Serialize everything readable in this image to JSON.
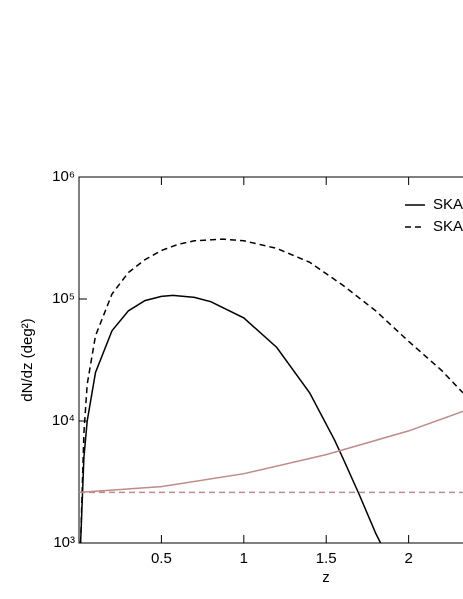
{
  "chart_data": {
    "type": "line",
    "xlabel": "z",
    "ylabel": "dN/dz (deg²)",
    "log_y": true,
    "xlim": [
      0,
      2.33
    ],
    "ylim": [
      1000,
      1000000
    ],
    "xticks": [
      0.5,
      1,
      1.5,
      2
    ],
    "yticks": [
      {
        "value": 1000,
        "label": "10³"
      },
      {
        "value": 10000,
        "label": "10⁴"
      },
      {
        "value": 100000,
        "label": "10⁵"
      },
      {
        "value": 1000000,
        "label": "10⁶"
      }
    ],
    "series": [
      {
        "name": "SKA",
        "color": "#000000",
        "dash": "solid",
        "x": [
          0.01,
          0.03,
          0.05,
          0.1,
          0.2,
          0.3,
          0.4,
          0.5,
          0.57,
          0.7,
          0.8,
          1.0,
          1.2,
          1.4,
          1.55,
          1.6,
          1.7,
          1.8,
          1.83
        ],
        "values": [
          1000,
          5000,
          10000,
          25000,
          55000,
          80000,
          97000,
          105000,
          107000,
          103000,
          95000,
          70000,
          40000,
          17000,
          7000,
          5000,
          2500,
          1200,
          1000
        ]
      },
      {
        "name": "SKA",
        "color": "#000000",
        "dash": "dashed",
        "x": [
          0.01,
          0.03,
          0.05,
          0.1,
          0.2,
          0.3,
          0.4,
          0.5,
          0.6,
          0.7,
          0.87,
          1.0,
          1.2,
          1.4,
          1.6,
          1.8,
          2.0,
          2.2,
          2.33
        ],
        "values": [
          1000,
          8000,
          20000,
          50000,
          110000,
          165000,
          210000,
          250000,
          280000,
          300000,
          310000,
          300000,
          260000,
          200000,
          130000,
          80000,
          45000,
          26000,
          17000
        ]
      },
      {
        "color": "#c08a8a",
        "dash": "solid",
        "x": [
          0,
          0.5,
          1,
          1.5,
          2,
          2.33
        ],
        "values": [
          2600,
          2900,
          3700,
          5300,
          8300,
          12000
        ]
      },
      {
        "color": "#c08a8a",
        "dash": "dashed",
        "x": [
          0,
          2.33
        ],
        "values": [
          2600,
          2600
        ]
      }
    ]
  }
}
